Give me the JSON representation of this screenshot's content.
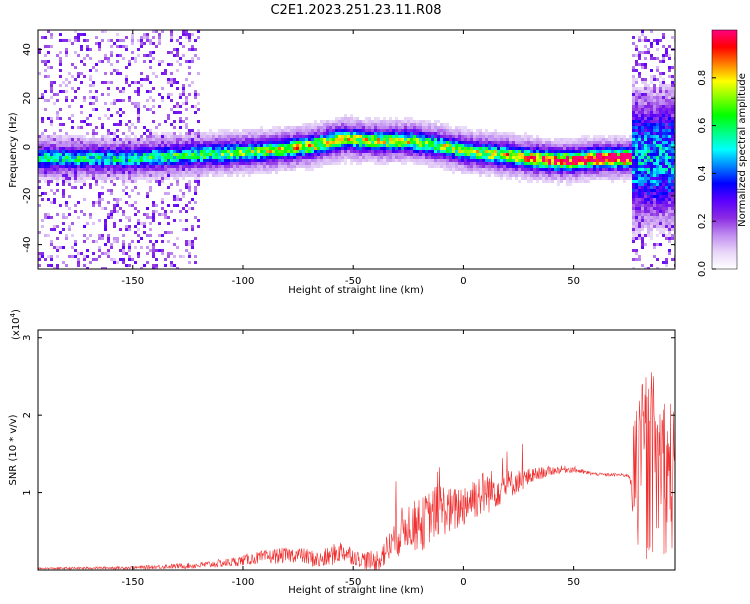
{
  "title": "C2E1.2023.251.23.11.R08",
  "chart_data": [
    {
      "type": "heatmap",
      "xlabel": "Height of straight line (km)",
      "ylabel": "Frequency (Hz)",
      "xlim": [
        -193,
        96
      ],
      "ylim": [
        -50,
        48
      ],
      "x_ticks": [
        -150,
        -100,
        -50,
        0,
        50
      ],
      "y_ticks": [
        -40,
        -20,
        0,
        20,
        40
      ],
      "colorbar": {
        "label": "Normalized spectral amplitude",
        "range": [
          0,
          1
        ],
        "ticks": [
          "0.0",
          "0.2",
          "0.4",
          "0.6",
          "0.8"
        ],
        "colors": [
          "#ffffff",
          "#e8d6f8",
          "#c08cf0",
          "#8a2be2",
          "#5a00ff",
          "#0000ff",
          "#0080ff",
          "#00ffff",
          "#00ff80",
          "#00ff00",
          "#80ff00",
          "#ffff00",
          "#ff8000",
          "#ff0000",
          "#ff0080"
        ]
      },
      "ridge": {
        "x": [
          -150,
          -130,
          -110,
          -90,
          -70,
          -55,
          -40,
          -25,
          -10,
          0,
          10,
          20,
          30,
          40,
          50,
          60,
          70,
          78
        ],
        "freq": [
          -4,
          -3,
          -2,
          -1,
          1,
          4,
          3,
          3,
          1,
          -1,
          -2,
          -3,
          -4,
          -5,
          -5,
          -4,
          -4,
          -4
        ],
        "amplitude": [
          0.3,
          0.35,
          0.4,
          0.45,
          0.55,
          0.55,
          0.5,
          0.5,
          0.45,
          0.45,
          0.5,
          0.55,
          0.7,
          0.75,
          0.85,
          0.9,
          0.9,
          0.8
        ]
      }
    },
    {
      "type": "line",
      "xlabel": "Height of straight line (km)",
      "ylabel": "SNR (10 * v/v)",
      "y_scale_label": "(x10",
      "y_scale_exp": "4",
      "y_scale_close": ")",
      "xlim": [
        -193,
        96
      ],
      "ylim": [
        0,
        3.1
      ],
      "x_ticks": [
        -150,
        -100,
        -50,
        0,
        50
      ],
      "y_ticks": [
        1,
        2,
        3
      ],
      "color": "#f03030",
      "series": [
        {
          "x": [
            -193,
            -150,
            -120,
            -105,
            -95,
            -85,
            -75,
            -65,
            -55,
            -48,
            -40,
            -35,
            -30,
            -25,
            -20,
            -15,
            -10,
            -5,
            0,
            5,
            10,
            15,
            20,
            25,
            30,
            35,
            40,
            45,
            50,
            55,
            60,
            65,
            70,
            75,
            78,
            82,
            86,
            90,
            96
          ],
          "y": [
            0.02,
            0.03,
            0.06,
            0.1,
            0.15,
            0.18,
            0.2,
            0.12,
            0.25,
            0.15,
            0.1,
            0.25,
            0.45,
            0.6,
            0.55,
            0.7,
            0.8,
            0.75,
            0.85,
            0.95,
            1.0,
            1.05,
            1.1,
            1.15,
            1.2,
            1.25,
            1.28,
            1.3,
            1.3,
            1.26,
            1.24,
            1.23,
            1.23,
            1.22,
            1.22,
            1.3,
            1.4,
            1.3,
            1.2
          ],
          "spread": [
            0.01,
            0.02,
            0.04,
            0.06,
            0.08,
            0.1,
            0.1,
            0.12,
            0.15,
            0.1,
            0.15,
            0.2,
            0.3,
            0.3,
            0.35,
            0.35,
            0.35,
            0.3,
            0.3,
            0.3,
            0.3,
            0.25,
            0.2,
            0.15,
            0.12,
            0.08,
            0.06,
            0.05,
            0.04,
            0.03,
            0.02,
            0.02,
            0.02,
            0.02,
            0.9,
            1.2,
            1.2,
            1.1,
            1.0
          ]
        }
      ]
    }
  ]
}
